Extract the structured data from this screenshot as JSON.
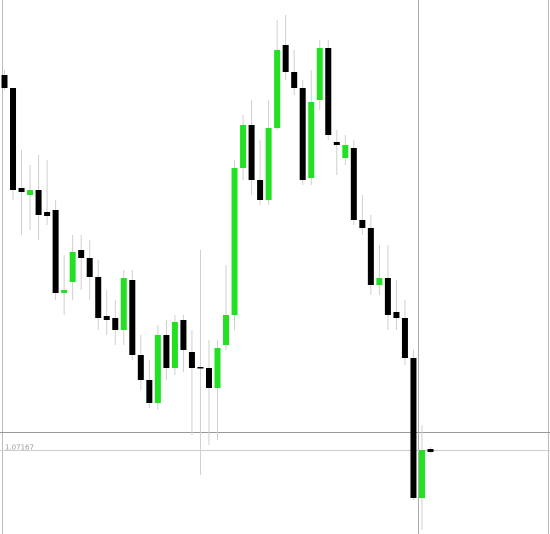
{
  "chart_data": {
    "type": "candlestick",
    "up_color": "#22e022",
    "down_color": "#000000",
    "wick_color": "#cfcfcf",
    "ylim": [
      1.07,
      1.08068
    ],
    "current_price": 1.07167,
    "open": [
      1.07918,
      1.07892,
      1.07692,
      1.07678,
      1.07688,
      1.07644,
      1.07648,
      1.07482,
      1.07504,
      1.07568,
      1.07552,
      1.07514,
      1.07436,
      1.07432,
      1.07408,
      1.07508,
      1.07358,
      1.07308,
      1.07262,
      1.07398,
      1.07332,
      1.07428,
      1.07364,
      1.07334,
      1.07332,
      1.07292,
      1.07378,
      1.07438,
      1.07732,
      1.07818,
      1.07708,
      1.07668,
      1.07812,
      1.07978,
      1.07924,
      1.07892,
      1.07712,
      1.07868,
      1.07972,
      1.07784,
      1.07752,
      1.07772,
      1.07628,
      1.07612,
      1.07498,
      1.07512,
      1.07444,
      1.07432,
      1.07352,
      1.07072,
      1.0717
    ],
    "high": [
      1.07928,
      1.07892,
      1.07768,
      1.07738,
      1.07758,
      1.07748,
      1.07668,
      1.07558,
      1.07598,
      1.07598,
      1.07588,
      1.07548,
      1.07488,
      1.07468,
      1.07528,
      1.07528,
      1.07398,
      1.07348,
      1.07418,
      1.07428,
      1.07438,
      1.07438,
      1.07408,
      1.07568,
      1.07388,
      1.07388,
      1.07538,
      1.07748,
      1.07838,
      1.07868,
      1.07788,
      1.07868,
      1.08028,
      1.08038,
      1.07968,
      1.07908,
      1.07928,
      1.07988,
      1.07988,
      1.07808,
      1.07798,
      1.07788,
      1.07678,
      1.07638,
      1.07578,
      1.07578,
      1.07508,
      1.07468,
      1.07368,
      1.07218,
      1.07174
    ],
    "low": [
      1.07888,
      1.07668,
      1.07598,
      1.07608,
      1.07588,
      1.07618,
      1.07468,
      1.07438,
      1.07468,
      1.07488,
      1.07468,
      1.07408,
      1.07398,
      1.07378,
      1.07378,
      1.07348,
      1.07288,
      1.07252,
      1.07248,
      1.07308,
      1.07318,
      1.07324,
      1.07198,
      1.07118,
      1.07178,
      1.07188,
      1.07368,
      1.07408,
      1.07708,
      1.07678,
      1.07658,
      1.07658,
      1.07808,
      1.07908,
      1.07878,
      1.07698,
      1.07698,
      1.07848,
      1.07788,
      1.07718,
      1.07738,
      1.07618,
      1.07598,
      1.07478,
      1.07478,
      1.07408,
      1.07408,
      1.07338,
      1.07068,
      1.07008,
      1.07162
    ],
    "close": [
      1.07892,
      1.07688,
      1.07684,
      1.07688,
      1.07638,
      1.07636,
      1.07482,
      1.07488,
      1.07564,
      1.07552,
      1.07514,
      1.07432,
      1.07428,
      1.07408,
      1.07512,
      1.07358,
      1.07308,
      1.07262,
      1.07398,
      1.07332,
      1.07424,
      1.07368,
      1.07332,
      1.07332,
      1.07292,
      1.07372,
      1.07438,
      1.07732,
      1.07818,
      1.07708,
      1.07668,
      1.07812,
      1.07968,
      1.07924,
      1.07892,
      1.07708,
      1.07864,
      1.07972,
      1.07798,
      1.07778,
      1.07778,
      1.07628,
      1.07612,
      1.07498,
      1.07512,
      1.07438,
      1.07432,
      1.07352,
      1.07072,
      1.07168,
      1.07164
    ]
  }
}
